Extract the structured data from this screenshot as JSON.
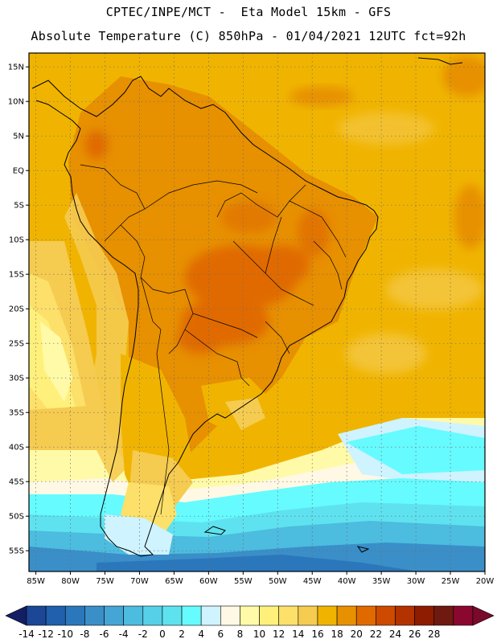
{
  "header": {
    "title_line1": "CPTEC/INPE/MCT -  Eta Model 15km - GFS",
    "title_line2": "Absolute Temperature (C) 850hPa - 01/04/2021 12UTC fct=92h"
  },
  "map": {
    "lat_range": [
      -58,
      17
    ],
    "lon_range": [
      -86,
      -20
    ],
    "lat_ticks": [
      {
        "value": 15,
        "label": "15N"
      },
      {
        "value": 10,
        "label": "10N"
      },
      {
        "value": 5,
        "label": "5N"
      },
      {
        "value": 0,
        "label": "EQ"
      },
      {
        "value": -5,
        "label": "5S"
      },
      {
        "value": -10,
        "label": "10S"
      },
      {
        "value": -15,
        "label": "15S"
      },
      {
        "value": -20,
        "label": "20S"
      },
      {
        "value": -25,
        "label": "25S"
      },
      {
        "value": -30,
        "label": "30S"
      },
      {
        "value": -35,
        "label": "35S"
      },
      {
        "value": -40,
        "label": "40S"
      },
      {
        "value": -45,
        "label": "45S"
      },
      {
        "value": -50,
        "label": "50S"
      },
      {
        "value": -55,
        "label": "55S"
      }
    ],
    "lon_ticks": [
      {
        "value": -85,
        "label": "85W"
      },
      {
        "value": -80,
        "label": "80W"
      },
      {
        "value": -75,
        "label": "75W"
      },
      {
        "value": -70,
        "label": "70W"
      },
      {
        "value": -65,
        "label": "65W"
      },
      {
        "value": -60,
        "label": "60W"
      },
      {
        "value": -55,
        "label": "55W"
      },
      {
        "value": -50,
        "label": "50W"
      },
      {
        "value": -45,
        "label": "45W"
      },
      {
        "value": -40,
        "label": "40W"
      },
      {
        "value": -35,
        "label": "35W"
      },
      {
        "value": -30,
        "label": "30W"
      },
      {
        "value": -25,
        "label": "25W"
      },
      {
        "value": -20,
        "label": "20W"
      }
    ],
    "grid": "dotted",
    "ocean_color": "#f0b400"
  },
  "colorbar": {
    "labels": [
      "-14",
      "-12",
      "-10",
      "-8",
      "-6",
      "-4",
      "-2",
      "0",
      "2",
      "4",
      "6",
      "8",
      "10",
      "12",
      "14",
      "16",
      "18",
      "20",
      "22",
      "24",
      "26",
      "28"
    ],
    "colors": [
      "#1c4696",
      "#2060ac",
      "#2b77bc",
      "#3a8fc9",
      "#45a5d4",
      "#4cbcdf",
      "#56d0e8",
      "#5fe2ef",
      "#66fbff",
      "#cff3ff",
      "#fff8e4",
      "#fffaa8",
      "#fff07c",
      "#fce06a",
      "#f5cb50",
      "#f0b400",
      "#e79000",
      "#e06a00",
      "#cd4a00",
      "#b43200",
      "#8e1c00",
      "#6e1a10",
      "#8a0830"
    ],
    "under_color": "#141e64",
    "over_color": "#7a0a2c"
  }
}
